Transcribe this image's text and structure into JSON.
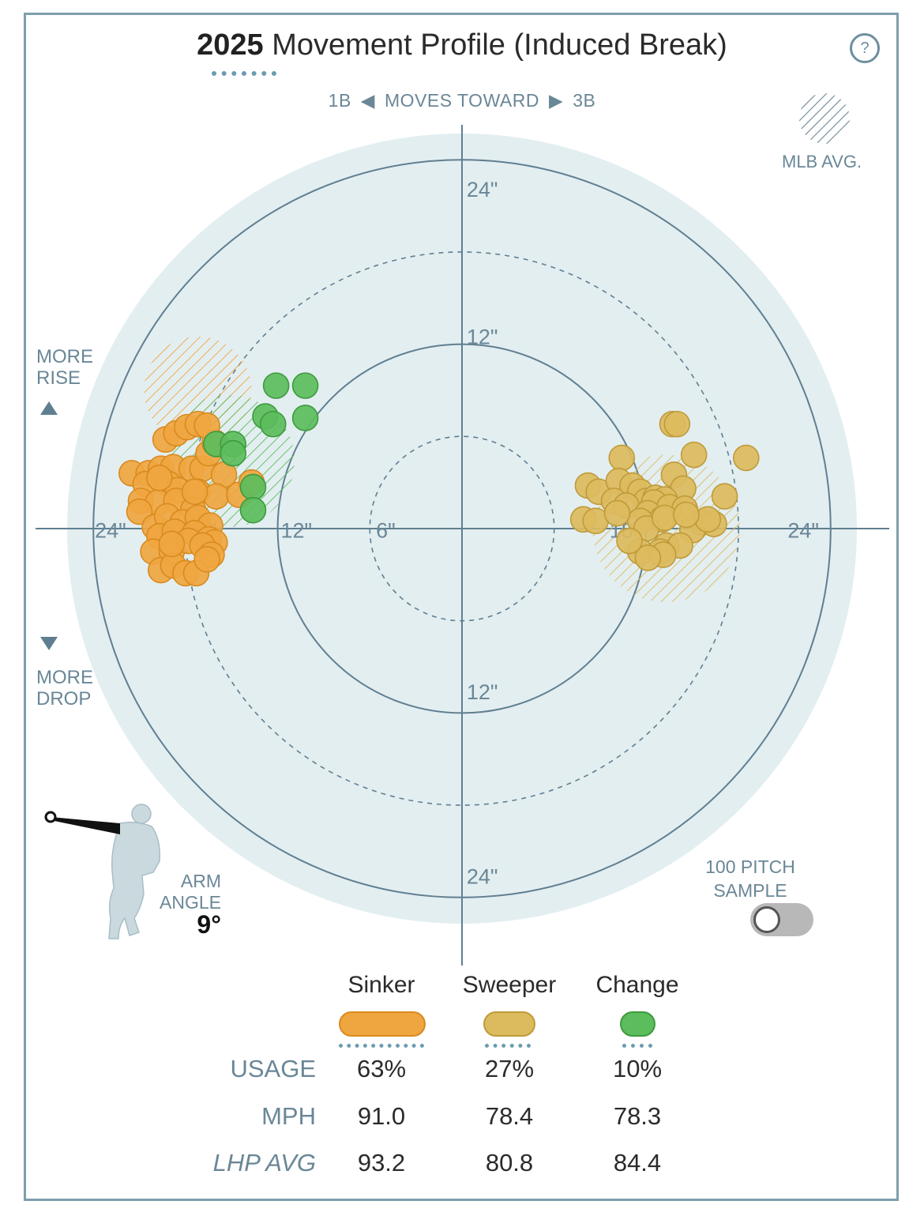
{
  "header": {
    "title_year": "2025",
    "title_rest": "Movement Profile (Induced Break)",
    "help_label": "?"
  },
  "direction": {
    "left": "1B",
    "middle": "MOVES TOWARD",
    "right": "3B"
  },
  "legend": {
    "mlb_avg": "MLB AVG."
  },
  "side_labels": {
    "rise_line1": "MORE",
    "rise_line2": "RISE",
    "drop_line1": "MORE",
    "drop_line2": "DROP"
  },
  "arm": {
    "label_line1": "ARM",
    "label_line2": "ANGLE",
    "value": "9°"
  },
  "sample": {
    "line1": "100 PITCH",
    "line2": "SAMPLE",
    "enabled": false
  },
  "colors": {
    "sinker": "#f0a640",
    "sinker_stroke": "#d98a1e",
    "sweeper": "#dcbb5e",
    "sweeper_stroke": "#bf9a38",
    "change": "#5cbd5c",
    "change_stroke": "#3d9a3d",
    "field": "#e3eef1",
    "ring": "#5f7f91",
    "accent": "#6b9cb0"
  },
  "chart_data": {
    "type": "scatter",
    "title": "2025 Movement Profile (Induced Break)",
    "xlabel": "Horizontal break (inches; negative = toward 1B, positive = toward 3B)",
    "ylabel": "Induced vertical break (inches; positive = more rise)",
    "rings": [
      6,
      12,
      18,
      24
    ],
    "ring_labels": {
      "top_24": "24\"",
      "top_12": "12\"",
      "bottom_12": "12\"",
      "bottom_24": "24\"",
      "left_24": "24\"",
      "left_18": "18\"",
      "left_12": "12\"",
      "left_6": "6\"",
      "right_18": "18\"",
      "right_24": "24\""
    },
    "xlim": [
      -27,
      28
    ],
    "ylim": [
      -26,
      26
    ],
    "mlb_avg_zones": [
      {
        "pitch": "Sinker",
        "cx": -17.2,
        "cy": 9.0,
        "r": 3.5
      },
      {
        "pitch": "Change",
        "cx": -15.2,
        "cy": 4.4,
        "r": 4.3
      },
      {
        "pitch": "Sweeper",
        "cx": 13.3,
        "cy": 0.0,
        "r": 4.8
      }
    ],
    "series": [
      {
        "name": "Sinker",
        "points": [
          [
            -21.5,
            3.6
          ],
          [
            -20.4,
            3.6
          ],
          [
            -19.6,
            3.9
          ],
          [
            -18.8,
            4.0
          ],
          [
            -17.6,
            3.9
          ],
          [
            -16.9,
            3.9
          ],
          [
            -15.5,
            3.5
          ],
          [
            -20.6,
            2.9
          ],
          [
            -19.1,
            2.9
          ],
          [
            -18.5,
            2.5
          ],
          [
            -17.2,
            2.4
          ],
          [
            -16.0,
            2.1
          ],
          [
            -14.5,
            2.2
          ],
          [
            -13.7,
            3.0
          ],
          [
            -20.9,
            1.8
          ],
          [
            -19.8,
            1.7
          ],
          [
            -18.6,
            1.8
          ],
          [
            -17.5,
            1.2
          ],
          [
            -21.0,
            1.1
          ],
          [
            -16.5,
            4.9
          ],
          [
            -16.1,
            5.6
          ],
          [
            -19.3,
            5.8
          ],
          [
            -18.6,
            6.2
          ],
          [
            -17.9,
            6.6
          ],
          [
            -17.2,
            6.8
          ],
          [
            -16.6,
            6.7
          ],
          [
            -20.0,
            0.1
          ],
          [
            -19.2,
            0.8
          ],
          [
            -18.2,
            0.4
          ],
          [
            -17.2,
            0.7
          ],
          [
            -16.4,
            0.2
          ],
          [
            -19.7,
            -0.5
          ],
          [
            -18.7,
            -0.2
          ],
          [
            -17.4,
            -0.3
          ],
          [
            -16.5,
            -0.7
          ],
          [
            -16.1,
            -0.9
          ],
          [
            -20.1,
            -1.5
          ],
          [
            -18.9,
            -1.5
          ],
          [
            -17.8,
            -0.8
          ],
          [
            -16.9,
            -1.1
          ],
          [
            -16.3,
            -1.7
          ],
          [
            -19.6,
            -2.7
          ],
          [
            -18.8,
            -2.4
          ],
          [
            -18.0,
            -2.9
          ],
          [
            -17.3,
            -2.9
          ],
          [
            -16.6,
            -2.0
          ],
          [
            -18.9,
            -1.0
          ],
          [
            -19.7,
            3.3
          ],
          [
            -17.4,
            2.4
          ]
        ]
      },
      {
        "name": "Sweeper",
        "points": [
          [
            13.7,
            6.8
          ],
          [
            14.0,
            6.8
          ],
          [
            10.4,
            4.6
          ],
          [
            15.1,
            4.8
          ],
          [
            18.5,
            4.6
          ],
          [
            8.2,
            2.8
          ],
          [
            8.9,
            2.4
          ],
          [
            10.2,
            3.1
          ],
          [
            11.1,
            2.8
          ],
          [
            11.6,
            2.4
          ],
          [
            13.8,
            3.5
          ],
          [
            14.4,
            2.6
          ],
          [
            12.0,
            1.8
          ],
          [
            12.6,
            2.0
          ],
          [
            13.0,
            1.7
          ],
          [
            13.2,
            1.9
          ],
          [
            17.1,
            2.1
          ],
          [
            9.9,
            1.8
          ],
          [
            10.7,
            1.5
          ],
          [
            12.5,
            1.7
          ],
          [
            13.5,
            1.4
          ],
          [
            14.5,
            1.3
          ],
          [
            12.1,
            1.0
          ],
          [
            13.0,
            0.6
          ],
          [
            7.9,
            0.6
          ],
          [
            8.7,
            0.5
          ],
          [
            15.6,
            0.4
          ],
          [
            16.4,
            0.3
          ],
          [
            15.0,
            -0.1
          ],
          [
            16.0,
            0.6
          ],
          [
            11.6,
            0.5
          ],
          [
            12.0,
            0.0
          ],
          [
            10.1,
            1.0
          ],
          [
            13.2,
            0.7
          ],
          [
            13.3,
            -1.1
          ],
          [
            14.2,
            -1.1
          ],
          [
            11.6,
            -1.5
          ],
          [
            12.9,
            -1.5
          ],
          [
            13.1,
            -1.7
          ],
          [
            12.1,
            -1.9
          ],
          [
            10.9,
            -0.8
          ],
          [
            14.6,
            0.9
          ]
        ]
      },
      {
        "name": "Change",
        "points": [
          [
            -12.1,
            9.3
          ],
          [
            -10.2,
            9.3
          ],
          [
            -12.8,
            7.3
          ],
          [
            -10.2,
            7.2
          ],
          [
            -12.3,
            6.8
          ],
          [
            -16.0,
            5.5
          ],
          [
            -14.9,
            5.5
          ],
          [
            -14.9,
            4.9
          ],
          [
            -13.6,
            2.7
          ],
          [
            -13.6,
            1.2
          ]
        ]
      }
    ],
    "table": {
      "columns": [
        "Sinker",
        "Sweeper",
        "Change"
      ],
      "rows": [
        {
          "label": "USAGE",
          "values": [
            "63%",
            "27%",
            "10%"
          ]
        },
        {
          "label": "MPH",
          "values": [
            "91.0",
            "78.4",
            "78.3"
          ]
        },
        {
          "label": "LHP AVG",
          "values": [
            "93.2",
            "80.8",
            "84.4"
          ]
        }
      ]
    }
  }
}
